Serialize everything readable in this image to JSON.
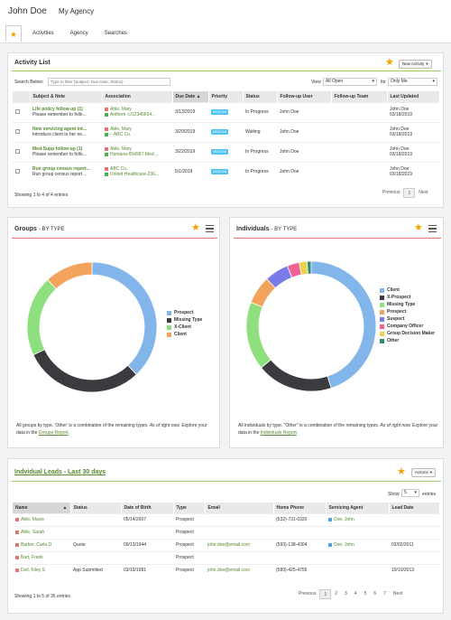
{
  "header": {
    "user_name": "John Doe",
    "agency_name": "My Agency"
  },
  "tabs": [
    {
      "label": "★"
    },
    {
      "label": "Activities"
    },
    {
      "label": "Agency"
    },
    {
      "label": "Searches"
    }
  ],
  "activity": {
    "title": "Activity List",
    "new_button": "New Activity",
    "search_label": "Search Below:",
    "search_placeholder": "Type to filter (Subject, Due Date, Status)",
    "view_label": "View",
    "view_value": "All Open",
    "for_label": "for",
    "for_value": "Only Me",
    "columns": [
      "Subject & Note",
      "Association",
      "Due Date",
      "Priority",
      "Status",
      "Follow-up User",
      "Follow-up Team",
      "Last Updated"
    ],
    "rows": [
      {
        "subject": "Life policy follow-up (1)",
        "note": "Please remember to follo...",
        "assoc1": "Able, Mary",
        "assoc2": "Anthem -U12345654...",
        "due": "3/13/2019",
        "priority": "MEDIUM",
        "status": "In Progress",
        "user": "John Doe",
        "team": "",
        "updated_by": "John Doe",
        "updated": "03/18/2019"
      },
      {
        "subject": "New servicing agent int...",
        "note": "Introduce client to her ne...",
        "assoc1": "Able, Mary",
        "assoc2": "– ABC Co.",
        "due": "3/20/2019",
        "priority": "MEDIUM",
        "status": "Waiting",
        "user": "John Doe",
        "team": "",
        "updated_by": "John Doe",
        "updated": "03/18/2019"
      },
      {
        "subject": "Med-Supp follow-up (1)",
        "note": "Please remember to follo...",
        "assoc1": "Able, Mary",
        "assoc2": "Humana-654987-Med ...",
        "due": "3/22/2019",
        "priority": "MEDIUM",
        "status": "In Progress",
        "user": "John Doe",
        "team": "",
        "updated_by": "John Doe",
        "updated": "03/18/2019"
      },
      {
        "subject": "Run group census report...",
        "note": "Run group census report ...",
        "assoc1": "ABC Co.",
        "assoc2": "United Healthcare-236...",
        "due": "5/1/2019",
        "priority": "MEDIUM",
        "status": "In Progress",
        "user": "John Doe",
        "team": "",
        "updated_by": "John Doe",
        "updated": "03/18/2019"
      }
    ],
    "footer": "Showing 1 to 4 of 4 entries",
    "pager": {
      "prev": "Previous",
      "page": "1",
      "next": "Next"
    }
  },
  "groups": {
    "title": "Groups",
    "subtitle": "- BY TYPE",
    "note_prefix": "All groups by type. 'Other' is a combination of the remaining types.",
    "note_italic": "As of right now.",
    "note_explore": "Explore your data in the",
    "note_link": "Groups Report",
    "legend": [
      {
        "name": "Prospect",
        "color": "#82b5e9"
      },
      {
        "name": "Missing Type",
        "color": "#3a3a3f"
      },
      {
        "name": "X-Client",
        "color": "#8de07d"
      },
      {
        "name": "Client",
        "color": "#f4a35c"
      }
    ]
  },
  "individuals": {
    "title": "Individuals",
    "subtitle": "- BY TYPE",
    "note_prefix": "All individuals by type. \"Other\" is a combination of the remaining types.",
    "note_italic": "As of right now.",
    "note_explore": "Explore your data in the",
    "note_link": "Individuals Report",
    "legend": [
      {
        "name": "Client",
        "color": "#82b5e9"
      },
      {
        "name": "X-Prospect",
        "color": "#3a3a3f"
      },
      {
        "name": "Missing Type",
        "color": "#8de07d"
      },
      {
        "name": "Prospect",
        "color": "#f4a35c"
      },
      {
        "name": "Suspect",
        "color": "#7b7be8"
      },
      {
        "name": "Company Officer",
        "color": "#f06292"
      },
      {
        "name": "Group Decision Maker",
        "color": "#e8d44d"
      },
      {
        "name": "Other",
        "color": "#2e8b7a"
      }
    ]
  },
  "chart_data": [
    {
      "type": "pie",
      "title": "Groups - BY TYPE",
      "categories": [
        "Prospect",
        "Missing Type",
        "X-Client",
        "Client"
      ],
      "values": [
        38,
        30,
        20,
        12
      ]
    },
    {
      "type": "pie",
      "title": "Individuals - BY TYPE",
      "categories": [
        "Client",
        "X-Prospect",
        "Missing Type",
        "Prospect",
        "Suspect",
        "Company Officer",
        "Group Decision Maker",
        "Other"
      ],
      "values": [
        45,
        19,
        17,
        7,
        6,
        3,
        2,
        1
      ]
    }
  ],
  "leads": {
    "title": "Indvidual Leads - Last 30 days",
    "actions": "Actions",
    "show_label": "Show",
    "show_value": "5",
    "entries_label": "entries",
    "columns": [
      "Name",
      "Status",
      "Date of Birth",
      "Type",
      "Email",
      "Home Phone",
      "Servicing Agent",
      "Lead Date"
    ],
    "rows": [
      {
        "name": "Able, Macie",
        "color": "#e57373",
        "status": "",
        "dob": "05/14/2007",
        "type": "Prospect",
        "email": "",
        "phone": "(532)-731-0320",
        "agent": "Doe, John",
        "agent_color": "#4fa3e0",
        "lead": ""
      },
      {
        "name": "Able, Sarah",
        "color": "#e57373",
        "status": "",
        "dob": "",
        "type": "Prospect",
        "email": "",
        "phone": "",
        "agent": "",
        "agent_color": "",
        "lead": ""
      },
      {
        "name": "Barker, Carla D",
        "color": "#e57373",
        "status": "Quote",
        "dob": "09/13/1944",
        "type": "Prospect",
        "email": "john.doe@email.com",
        "phone": "(593)-138-4304",
        "agent": "Doe, John",
        "agent_color": "#4fa3e0",
        "lead": "02/02/2011"
      },
      {
        "name": "Bart, Frank",
        "color": "#e57373",
        "status": "",
        "dob": "",
        "type": "Prospect",
        "email": "",
        "phone": "",
        "agent": "",
        "agent_color": "",
        "lead": ""
      },
      {
        "name": "Doll, Kiley S",
        "color": "#e57373",
        "status": "App Submitted",
        "dob": "03/19/1981",
        "type": "Prospect",
        "email": "john.doe@email.com",
        "phone": "(589)-425-4755",
        "agent": "",
        "agent_color": "",
        "lead": "10/10/2013"
      }
    ],
    "footer": "Showing 1 to 5 of 35 entries",
    "pager": {
      "prev": "Previous",
      "pages": [
        "1",
        "2",
        "3",
        "4",
        "5",
        "6",
        "7"
      ],
      "next": "Next"
    }
  }
}
